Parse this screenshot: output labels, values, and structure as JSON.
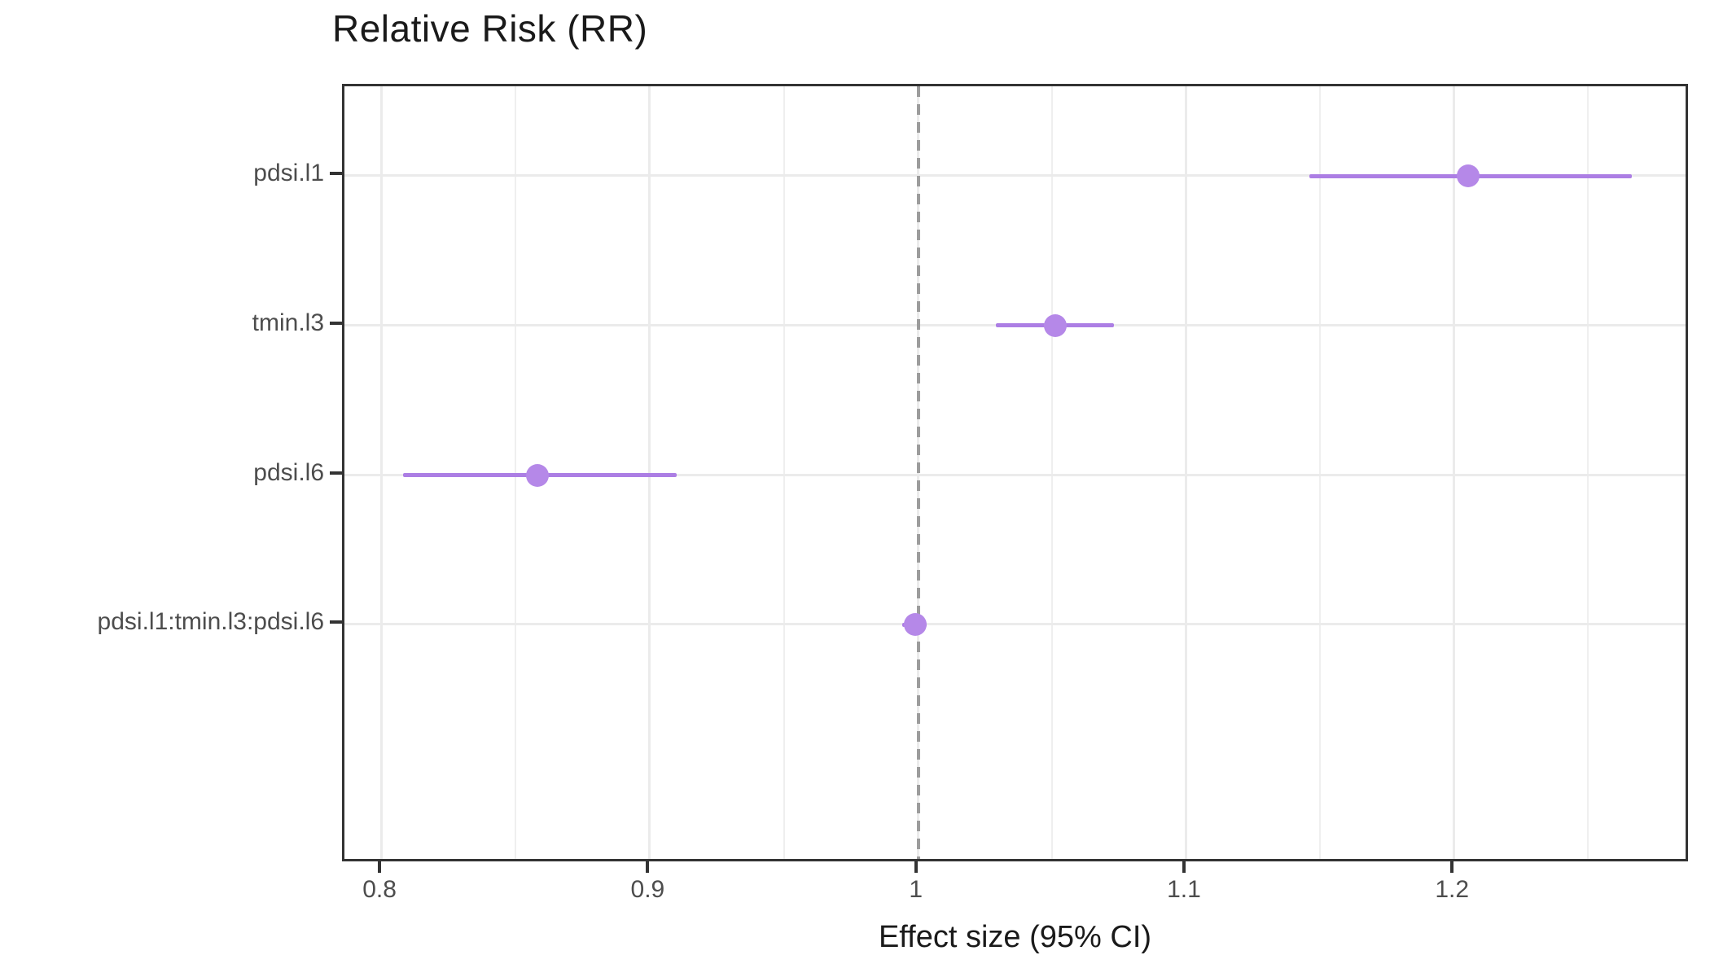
{
  "title": "Relative Risk (RR)",
  "x_axis_title": "Effect size (95% CI)",
  "chart_data": {
    "type": "scatter",
    "subtype": "forest-plot",
    "title": "Relative Risk (RR)",
    "xlabel": "Effect size (95% CI)",
    "ylabel": "",
    "grid": true,
    "legend": false,
    "xlim": [
      0.786,
      1.288
    ],
    "reference_line_x": 1,
    "categories": [
      "pdsi.l1",
      "tmin.l3",
      "pdsi.l6",
      "pdsi.l1:tmin.l3:pdsi.l6"
    ],
    "series": [
      {
        "name": "pdsi.l1",
        "rr": 1.205,
        "ci_low": 1.146,
        "ci_high": 1.266
      },
      {
        "name": "tmin.l3",
        "rr": 1.051,
        "ci_low": 1.029,
        "ci_high": 1.073
      },
      {
        "name": "pdsi.l6",
        "rr": 0.858,
        "ci_low": 0.808,
        "ci_high": 0.91
      },
      {
        "name": "pdsi.l1:tmin.l3:pdsi.l6",
        "rr": 0.999,
        "ci_low": 0.994,
        "ci_high": 1.003
      }
    ],
    "x_ticks": [
      0.8,
      0.9,
      1,
      1.1,
      1.2
    ],
    "x_tick_labels": [
      "0.8",
      "0.9",
      "1",
      "1.1",
      "1.2"
    ],
    "x_minor_ticks": [
      0.85,
      0.95,
      1.05,
      1.15,
      1.25
    ],
    "colors": {
      "point": "#b588e8",
      "ci_line": "#ac7ee4",
      "reference_line": "#9c9c9c",
      "grid_major": "#ebebeb",
      "grid_minor": "#efefef",
      "panel_border": "#333333",
      "tick_mark": "#333333",
      "axis_text": "#4d4d4d",
      "title_text": "#1a1a1a"
    }
  }
}
